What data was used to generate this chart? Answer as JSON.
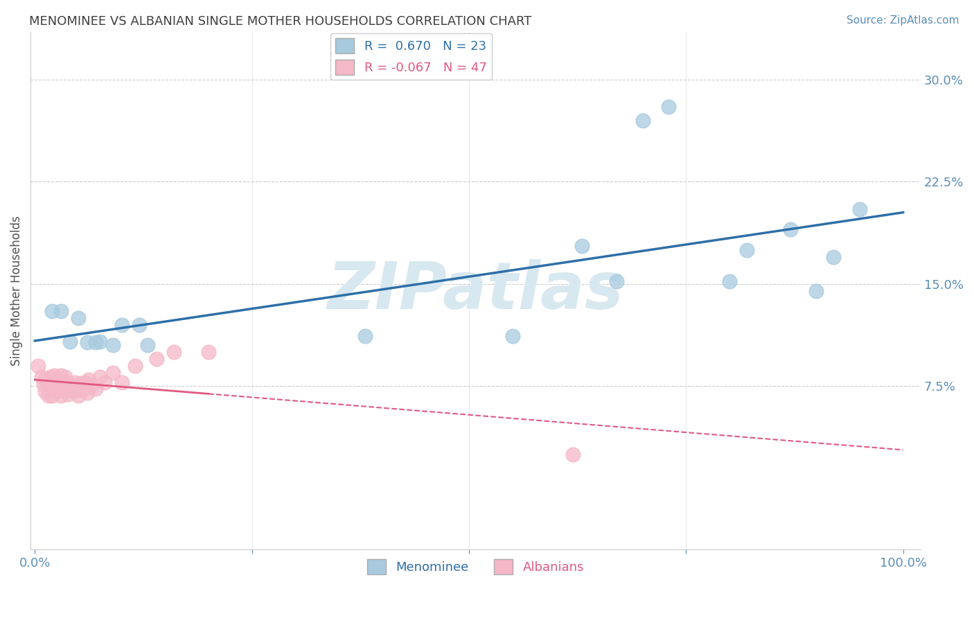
{
  "title": "MENOMINEE VS ALBANIAN SINGLE MOTHER HOUSEHOLDS CORRELATION CHART",
  "source": "Source: ZipAtlas.com",
  "ylabel": "Single Mother Households",
  "xlim": [
    -0.005,
    1.02
  ],
  "ylim": [
    -0.045,
    0.335
  ],
  "yticks": [
    0.075,
    0.15,
    0.225,
    0.3
  ],
  "ytick_labels": [
    "7.5%",
    "15.0%",
    "22.5%",
    "30.0%"
  ],
  "menominee_R": 0.67,
  "menominee_N": 23,
  "albanian_R": -0.067,
  "albanian_N": 47,
  "menominee_color": "#A8CADF",
  "albanian_color": "#F5B8C8",
  "menominee_line_color": "#2E6FA8",
  "albanian_line_color": "#E05880",
  "watermark": "ZIPatlas",
  "watermark_color": "#D8E8F0",
  "background_color": "#FFFFFF",
  "menominee_x": [
    0.02,
    0.03,
    0.04,
    0.05,
    0.06,
    0.07,
    0.075,
    0.09,
    0.1,
    0.12,
    0.13,
    0.38,
    0.55,
    0.63,
    0.67,
    0.7,
    0.73,
    0.8,
    0.82,
    0.87,
    0.9,
    0.92,
    0.95
  ],
  "menominee_y": [
    0.13,
    0.13,
    0.108,
    0.125,
    0.107,
    0.107,
    0.108,
    0.105,
    0.12,
    0.12,
    0.105,
    0.112,
    0.112,
    0.178,
    0.152,
    0.27,
    0.28,
    0.152,
    0.175,
    0.19,
    0.145,
    0.17,
    0.205
  ],
  "albanian_x": [
    0.004,
    0.008,
    0.01,
    0.012,
    0.012,
    0.015,
    0.016,
    0.018,
    0.018,
    0.02,
    0.02,
    0.022,
    0.022,
    0.025,
    0.025,
    0.028,
    0.03,
    0.03,
    0.03,
    0.032,
    0.033,
    0.035,
    0.035,
    0.038,
    0.038,
    0.04,
    0.042,
    0.044,
    0.046,
    0.048,
    0.05,
    0.052,
    0.055,
    0.058,
    0.06,
    0.062,
    0.065,
    0.07,
    0.075,
    0.08,
    0.09,
    0.1,
    0.115,
    0.14,
    0.16,
    0.2,
    0.62
  ],
  "albanian_y": [
    0.09,
    0.082,
    0.076,
    0.071,
    0.08,
    0.075,
    0.068,
    0.073,
    0.082,
    0.068,
    0.078,
    0.073,
    0.083,
    0.071,
    0.08,
    0.075,
    0.068,
    0.074,
    0.083,
    0.072,
    0.079,
    0.072,
    0.082,
    0.069,
    0.078,
    0.073,
    0.076,
    0.071,
    0.078,
    0.073,
    0.068,
    0.077,
    0.072,
    0.078,
    0.07,
    0.08,
    0.076,
    0.073,
    0.082,
    0.078,
    0.085,
    0.078,
    0.09,
    0.095,
    0.1,
    0.1,
    0.025
  ],
  "grid_color": "#CCCCCC",
  "title_color": "#404040",
  "tick_color": "#5B8DB8"
}
